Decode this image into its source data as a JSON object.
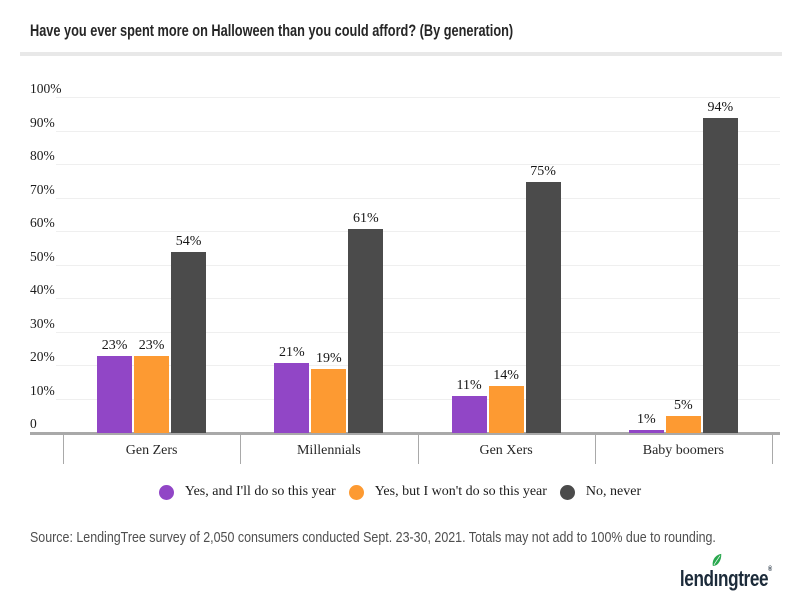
{
  "title": "Have you ever spent more on Halloween than you could afford? (By generation)",
  "chart_data": {
    "type": "bar",
    "title": "Have you ever spent more on Halloween than you could afford? (By generation)",
    "categories": [
      "Gen Zers",
      "Millennials",
      "Gen Xers",
      "Baby boomers"
    ],
    "series": [
      {
        "name": "Yes, and I'll do so this year",
        "color": "#9146c6",
        "values": [
          23,
          21,
          11,
          1
        ]
      },
      {
        "name": "Yes, but I won't do so this year",
        "color": "#fd9a32",
        "values": [
          23,
          19,
          14,
          5
        ]
      },
      {
        "name": "No, never",
        "color": "#4b4b4b",
        "values": [
          54,
          61,
          75,
          94
        ]
      }
    ],
    "y_axis": {
      "ticks": [
        "0",
        "10%",
        "20%",
        "30%",
        "40%",
        "50%",
        "60%",
        "70%",
        "80%",
        "90%",
        "100%"
      ],
      "range": [
        0,
        100
      ],
      "gridlines": true
    },
    "data_label_suffix": "%",
    "legend_position": "bottom"
  },
  "footer": {
    "source": "Source: LendingTree survey of 2,050 consumers conducted Sept. 23-30, 2021. Totals may not add to 100% due to rounding."
  },
  "logo": {
    "text": "lendingtree",
    "mark": "®",
    "leaf_color": "#29a84e",
    "text_color": "#1c2b3a"
  }
}
